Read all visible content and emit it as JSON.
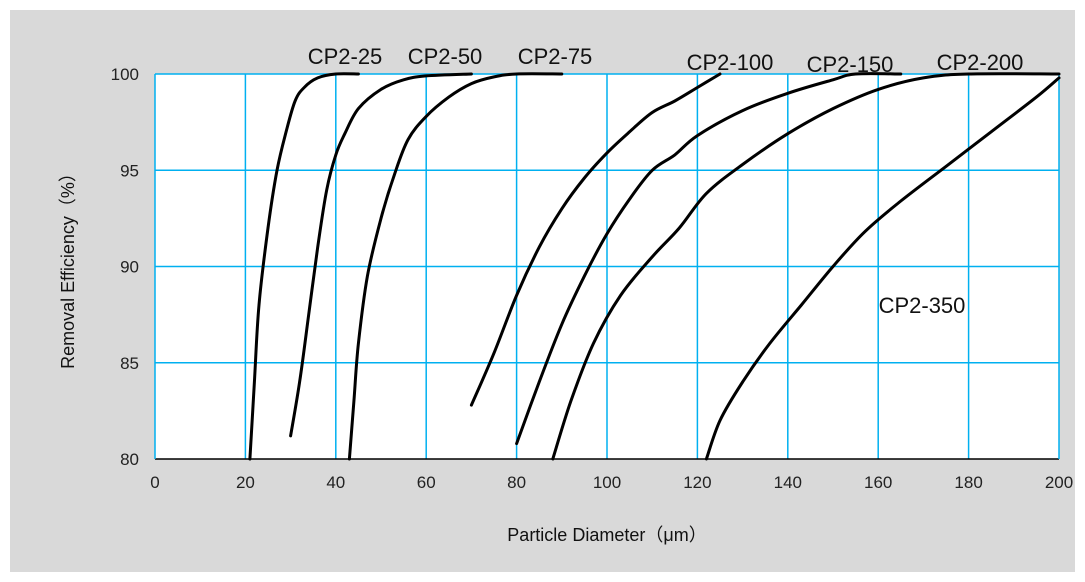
{
  "chart_data": {
    "type": "line",
    "title": "",
    "xlabel": "Particle Diameter（μm）",
    "ylabel": "Removal Efficiency（%）",
    "xlim": [
      0,
      200
    ],
    "ylim": [
      80,
      100
    ],
    "xticks": [
      0,
      20,
      40,
      60,
      80,
      100,
      120,
      140,
      160,
      180,
      200
    ],
    "yticks": [
      80,
      85,
      90,
      95,
      100
    ],
    "grid": true,
    "legend": "none",
    "colors": {
      "plot_bg": "#ffffff",
      "panel_bg": "#d9d9d9",
      "grid": "#00b0f0",
      "line": "#000000"
    },
    "series": [
      {
        "name": "CP2-25",
        "points": [
          [
            21,
            80
          ],
          [
            22,
            84
          ],
          [
            23,
            88
          ],
          [
            25,
            92
          ],
          [
            27,
            95
          ],
          [
            29,
            97
          ],
          [
            31,
            98.6
          ],
          [
            33,
            99.3
          ],
          [
            36,
            99.8
          ],
          [
            40,
            100
          ],
          [
            45,
            100
          ]
        ]
      },
      {
        "name": "CP2-50",
        "points": [
          [
            30,
            81.2
          ],
          [
            32,
            84
          ],
          [
            34,
            87.5
          ],
          [
            36,
            91
          ],
          [
            38,
            94
          ],
          [
            40,
            95.8
          ],
          [
            42,
            96.9
          ],
          [
            45,
            98.2
          ],
          [
            50,
            99.2
          ],
          [
            55,
            99.7
          ],
          [
            60,
            99.9
          ],
          [
            70,
            100
          ]
        ]
      },
      {
        "name": "CP2-75",
        "points": [
          [
            43,
            80
          ],
          [
            44,
            83
          ],
          [
            45,
            86
          ],
          [
            47,
            89.5
          ],
          [
            50,
            92.5
          ],
          [
            53,
            94.8
          ],
          [
            56,
            96.6
          ],
          [
            60,
            97.8
          ],
          [
            65,
            98.8
          ],
          [
            70,
            99.5
          ],
          [
            75,
            99.85
          ],
          [
            80,
            100
          ],
          [
            90,
            100
          ]
        ]
      },
      {
        "name": "CP2-100",
        "points": [
          [
            70,
            82.8
          ],
          [
            75,
            85.5
          ],
          [
            80,
            88.5
          ],
          [
            85,
            91
          ],
          [
            90,
            93
          ],
          [
            95,
            94.6
          ],
          [
            100,
            95.9
          ],
          [
            105,
            97
          ],
          [
            110,
            98
          ],
          [
            115,
            98.6
          ],
          [
            120,
            99.3
          ],
          [
            125,
            100
          ]
        ]
      },
      {
        "name": "CP2-150",
        "points": [
          [
            80,
            80.8
          ],
          [
            85,
            84
          ],
          [
            90,
            87
          ],
          [
            95,
            89.5
          ],
          [
            100,
            91.7
          ],
          [
            105,
            93.5
          ],
          [
            110,
            95
          ],
          [
            115,
            95.8
          ],
          [
            120,
            96.8
          ],
          [
            130,
            98.1
          ],
          [
            140,
            99
          ],
          [
            150,
            99.7
          ],
          [
            155,
            100
          ],
          [
            165,
            100
          ]
        ]
      },
      {
        "name": "CP2-200",
        "points": [
          [
            88,
            80
          ],
          [
            92,
            83
          ],
          [
            97,
            86
          ],
          [
            103,
            88.5
          ],
          [
            110,
            90.5
          ],
          [
            116,
            92
          ],
          [
            122,
            93.8
          ],
          [
            130,
            95.3
          ],
          [
            140,
            96.9
          ],
          [
            150,
            98.2
          ],
          [
            160,
            99.2
          ],
          [
            170,
            99.8
          ],
          [
            180,
            100
          ],
          [
            200,
            100
          ]
        ]
      },
      {
        "name": "CP2-350",
        "points": [
          [
            122,
            80
          ],
          [
            125,
            82
          ],
          [
            130,
            84
          ],
          [
            136,
            86
          ],
          [
            143,
            88
          ],
          [
            150,
            90
          ],
          [
            157,
            91.8
          ],
          [
            165,
            93.4
          ],
          [
            175,
            95.2
          ],
          [
            185,
            97
          ],
          [
            195,
            98.8
          ],
          [
            200,
            99.8
          ]
        ]
      }
    ]
  }
}
